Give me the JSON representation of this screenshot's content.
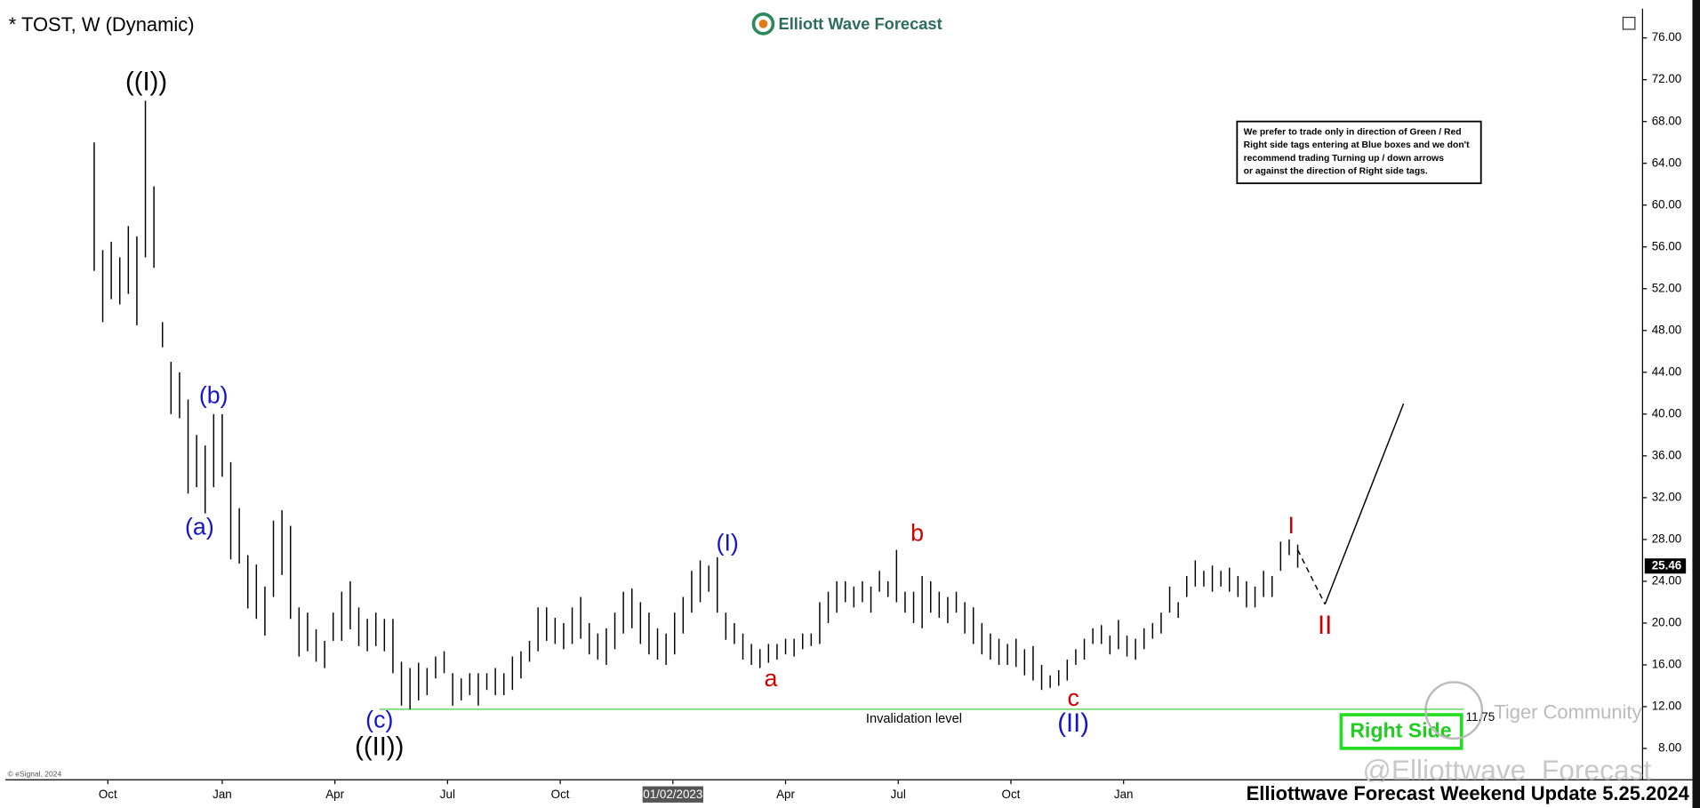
{
  "chart_data": {
    "type": "ohlc",
    "title": "* TOST, W (Dynamic)",
    "brand": "Elliott Wave Forecast",
    "footer": "Elliottwave Forecast Weekend Update 5.25.2024",
    "watermark": "@Elliottwave_Forecast",
    "community": "Tiger Community",
    "copyright": "© eSignal, 2024",
    "note": [
      "We prefer to trade only in direction of Green / Red",
      "Right side tags entering at Blue boxes and we don't",
      "recommend trading Turning up / down arrows",
      "or against the direction of Right side tags."
    ],
    "right_side_tag": "Right Side",
    "color": "#000000",
    "x": [
      0,
      1,
      2,
      3,
      4,
      5,
      6,
      7,
      8,
      9,
      10,
      11,
      12,
      13,
      14,
      15,
      16,
      17,
      18,
      19,
      20,
      21,
      22,
      23,
      24,
      25,
      26,
      27,
      28,
      29,
      30,
      31,
      32,
      33,
      34,
      35,
      36,
      37,
      38,
      39,
      40,
      41,
      42,
      43,
      44,
      45,
      46,
      47,
      48,
      49,
      50,
      51,
      52,
      53,
      54,
      55,
      56,
      57,
      58,
      59,
      60,
      61,
      62,
      63,
      64,
      65,
      66,
      67,
      68,
      69,
      70,
      71,
      72,
      73,
      74,
      75,
      76,
      77,
      78,
      79,
      80,
      81,
      82,
      83,
      84,
      85,
      86,
      87,
      88,
      89,
      90,
      91,
      92,
      93,
      94,
      95,
      96,
      97,
      98,
      99,
      100,
      101,
      102,
      103,
      104,
      105,
      106,
      107,
      108,
      109,
      110,
      111,
      112,
      113,
      114,
      115,
      116,
      117,
      118,
      119,
      120,
      121,
      122,
      123,
      124,
      125,
      126,
      127,
      128,
      129,
      130,
      131,
      132,
      133,
      134,
      135,
      136,
      137,
      138,
      139,
      140,
      141
    ],
    "high": [
      66,
      55.7,
      56.5,
      55,
      58,
      57,
      70,
      61.8,
      48.8,
      45,
      44,
      41.4,
      38,
      37,
      40,
      40,
      35.4,
      31,
      26.5,
      25.6,
      23.5,
      29.8,
      30.8,
      29.3,
      21.5,
      21,
      19.4,
      18.3,
      21,
      23,
      24,
      21.5,
      20.4,
      21,
      20.4,
      20.4,
      16.3,
      15.7,
      16.2,
      15.7,
      16.8,
      17.3,
      15.2,
      14.7,
      15.2,
      15.2,
      15.2,
      15.7,
      15.2,
      16.8,
      17.3,
      18.3,
      21.5,
      21.5,
      20.5,
      20,
      21.5,
      22.5,
      20,
      19,
      19.5,
      21,
      23,
      23.3,
      22,
      21,
      19.5,
      19,
      21,
      22.5,
      25,
      26,
      25.5,
      26.3,
      21,
      20,
      19,
      18,
      17.5,
      18,
      18,
      18.5,
      18.5,
      19,
      19,
      22,
      23,
      24,
      24,
      23.5,
      24,
      23.5,
      25,
      24,
      27,
      23,
      23,
      24.5,
      24,
      23,
      22.5,
      23,
      22,
      21.5,
      20,
      19,
      18.5,
      18,
      18.5,
      17.5,
      17.8,
      16,
      15,
      15.5,
      16.5,
      17.5,
      18.5,
      19.5,
      19.8,
      18.8,
      20.3,
      18.8,
      18.5,
      19.5,
      20,
      21,
      23.5,
      22,
      24.5,
      26,
      25,
      25.5,
      25,
      25.3,
      24.5,
      24,
      23.5,
      25,
      24.5,
      27.8,
      28,
      27.5
    ],
    "low": [
      53.7,
      48.8,
      51,
      50.5,
      51.5,
      48.5,
      55,
      54,
      46.4,
      40,
      39.6,
      32.4,
      33,
      30.5,
      33,
      34,
      26.1,
      25.7,
      21.4,
      20.4,
      18.8,
      22.5,
      24.6,
      20.4,
      16.8,
      17.3,
      16.3,
      15.7,
      18.3,
      18.3,
      19.4,
      17.8,
      17.3,
      17.8,
      17.3,
      15.2,
      12.1,
      11.75,
      12.6,
      13.1,
      14.7,
      15.2,
      12.1,
      12.6,
      13.1,
      12.1,
      13.6,
      13.1,
      13.1,
      13.6,
      14.7,
      16.3,
      17.3,
      18.3,
      18,
      17.5,
      18,
      18.5,
      17,
      16.5,
      16,
      17.5,
      19,
      19.5,
      18,
      17,
      16.5,
      16,
      17,
      19,
      21,
      22,
      23,
      21,
      18.4,
      18,
      16.5,
      16,
      15.7,
      16.2,
      16.5,
      17,
      16.8,
      17.5,
      17.8,
      18,
      20,
      21,
      22,
      21.5,
      22,
      21,
      23,
      22.5,
      22,
      21,
      20,
      19.5,
      21,
      20.5,
      20,
      21,
      19,
      18,
      17,
      16.5,
      16,
      16,
      15.8,
      15,
      14.5,
      13.6,
      13.8,
      14,
      14.5,
      16,
      16.5,
      18,
      18,
      17,
      17.5,
      16.8,
      16.5,
      17.5,
      18.5,
      19,
      21,
      20.5,
      22.5,
      23.5,
      23.5,
      23,
      23.5,
      23,
      22.5,
      21.5,
      21.5,
      22.5,
      22.5,
      25,
      26.5,
      25.3
    ],
    "last_price": 25.46,
    "invalidation": {
      "label": "Invalidation level",
      "value": 11.75,
      "color": "#33cc33"
    },
    "projection": [
      {
        "style": "dashed",
        "x": [
          141,
          144.2
        ],
        "y": [
          27,
          21.8
        ]
      },
      {
        "style": "solid",
        "x": [
          144.2,
          153.4
        ],
        "y": [
          21.8,
          41
        ]
      }
    ],
    "annotations": [
      {
        "text": "((I))",
        "color": "#000000"
      },
      {
        "text": "(b)",
        "color": "#1414c8"
      },
      {
        "text": "(a)",
        "color": "#1414c8"
      },
      {
        "text": "(c)",
        "color": "#1414c8"
      },
      {
        "text": "((II))",
        "color": "#000000"
      },
      {
        "text": "(I)",
        "color": "#1414c8"
      },
      {
        "text": "a",
        "color": "#cc0000"
      },
      {
        "text": "b",
        "color": "#cc0000"
      },
      {
        "text": "c",
        "color": "#cc0000"
      },
      {
        "text": "(II)",
        "color": "#1414c8"
      },
      {
        "text": "I",
        "color": "#cc0000"
      },
      {
        "text": "II",
        "color": "#cc0000"
      }
    ],
    "xlim": [
      -10.4,
      181.4
    ],
    "xticks": [
      {
        "value": 1.6,
        "label": "Oct"
      },
      {
        "value": 15,
        "label": "Jan"
      },
      {
        "value": 28.2,
        "label": "Apr"
      },
      {
        "value": 41.4,
        "label": "Jul"
      },
      {
        "value": 54.6,
        "label": "Oct"
      },
      {
        "value": 67.8,
        "label": "01/02/2023"
      },
      {
        "value": 81,
        "label": "Apr"
      },
      {
        "value": 94.2,
        "label": "Jul"
      },
      {
        "value": 107.4,
        "label": "Oct"
      },
      {
        "value": 120.6,
        "label": "Jan"
      }
    ],
    "ylim": [
      5,
      78.8
    ],
    "yticks": [
      {
        "value": 8,
        "label": "8.00"
      },
      {
        "value": 12,
        "label": "12.00"
      },
      {
        "value": 16,
        "label": "16.00"
      },
      {
        "value": 20,
        "label": "20.00"
      },
      {
        "value": 24,
        "label": "24.00"
      },
      {
        "value": 28,
        "label": "28.00"
      },
      {
        "value": 32,
        "label": "32.00"
      },
      {
        "value": 36,
        "label": "36.00"
      },
      {
        "value": 40,
        "label": "40.00"
      },
      {
        "value": 44,
        "label": "44.00"
      },
      {
        "value": 48,
        "label": "48.00"
      },
      {
        "value": 52,
        "label": "52.00"
      },
      {
        "value": 56,
        "label": "56.00"
      },
      {
        "value": 60,
        "label": "60.00"
      },
      {
        "value": 64,
        "label": "64.00"
      },
      {
        "value": 68,
        "label": "68.00"
      },
      {
        "value": 72,
        "label": "72.00"
      },
      {
        "value": 76,
        "label": "76.00"
      }
    ]
  }
}
